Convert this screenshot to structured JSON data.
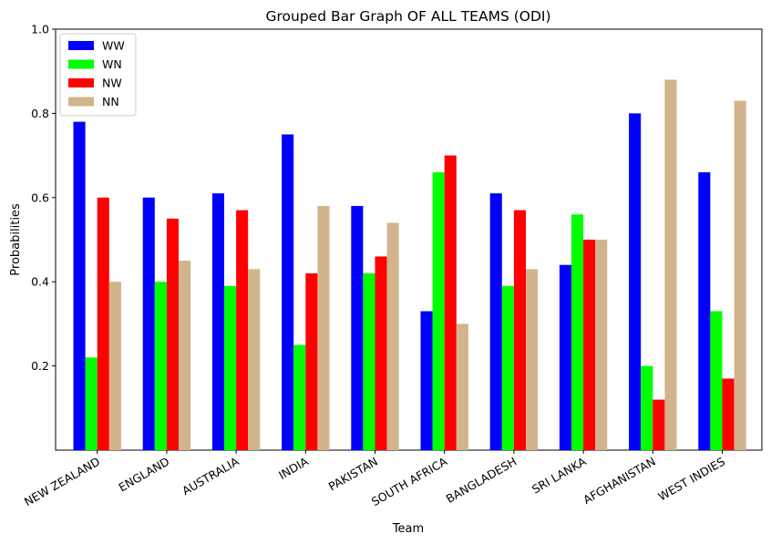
{
  "chart_data": {
    "type": "bar",
    "title": "Grouped Bar Graph OF ALL TEAMS (ODI)",
    "xlabel": "Team",
    "ylabel": "Probabilities",
    "ylim": [
      0.0,
      1.0
    ],
    "yticks": [
      "0.2",
      "0.4",
      "0.6",
      "0.8",
      "1.0"
    ],
    "categories": [
      "NEW ZEALAND",
      "ENGLAND",
      "AUSTRALIA",
      "INDIA",
      "PAKISTAN",
      "SOUTH AFRICA",
      "BANGLADESH",
      "SRI LANKA",
      "AFGHANISTAN",
      "WEST INDIES"
    ],
    "series": [
      {
        "name": "WW",
        "color": "#0000ff",
        "values": [
          0.78,
          0.6,
          0.61,
          0.75,
          0.58,
          0.33,
          0.61,
          0.44,
          0.8,
          0.66
        ]
      },
      {
        "name": "WN",
        "color": "#00ff00",
        "values": [
          0.22,
          0.4,
          0.39,
          0.25,
          0.42,
          0.66,
          0.39,
          0.56,
          0.2,
          0.33
        ]
      },
      {
        "name": "NW",
        "color": "#ff0000",
        "values": [
          0.6,
          0.55,
          0.57,
          0.42,
          0.46,
          0.7,
          0.57,
          0.5,
          0.12,
          0.17
        ]
      },
      {
        "name": "NN",
        "color": "#d2b48c",
        "values": [
          0.4,
          0.45,
          0.43,
          0.58,
          0.54,
          0.3,
          0.43,
          0.5,
          0.88,
          0.83
        ]
      }
    ],
    "legend_position": "top-left",
    "grid": false
  }
}
